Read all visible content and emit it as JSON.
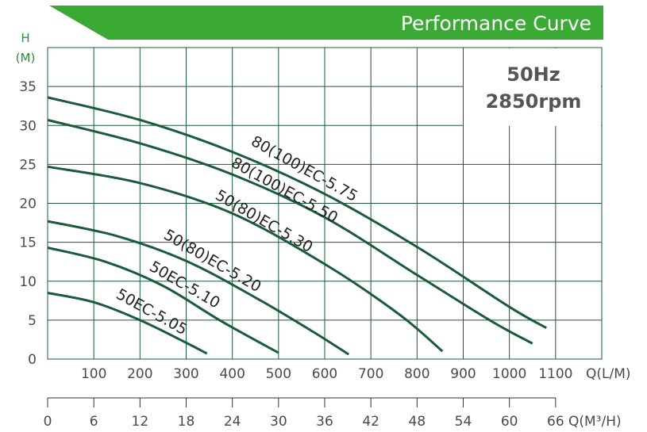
{
  "chart_data": {
    "type": "line",
    "title": "Performance Curve",
    "ylabel_lines": [
      "H",
      "(M)"
    ],
    "xlabel_lpm": "Q(L/M)",
    "xlabel_m3h": "Q(M³/H)",
    "info_lines": [
      "50Hz",
      "2850rpm"
    ],
    "xlim_lpm": [
      0,
      1200
    ],
    "ylim": [
      0,
      40
    ],
    "grid": true,
    "x_ticks_lpm": [
      100,
      200,
      300,
      400,
      500,
      600,
      700,
      800,
      900,
      1000,
      1100
    ],
    "x_ticks_m3h": [
      0,
      6,
      12,
      18,
      24,
      30,
      36,
      42,
      48,
      54,
      60,
      66
    ],
    "y_ticks": [
      0,
      5,
      10,
      15,
      20,
      25,
      30,
      35
    ],
    "curve_color": "#1a5c38",
    "accent_color": "#3aaa35",
    "series": [
      {
        "name": "80(100)EC-5.75",
        "x": [
          0,
          200,
          400,
          600,
          800,
          1000,
          1080
        ],
        "y": [
          33.6,
          30.7,
          26.6,
          21.2,
          14.4,
          6.7,
          4.0
        ]
      },
      {
        "name": "80(100)EC-5.50",
        "x": [
          0,
          200,
          400,
          600,
          800,
          960,
          1050
        ],
        "y": [
          30.7,
          27.7,
          23.7,
          18.2,
          10.8,
          4.9,
          2.0
        ]
      },
      {
        "name": "50(80)EC-5.30",
        "x": [
          0,
          200,
          400,
          600,
          760,
          855
        ],
        "y": [
          24.7,
          22.6,
          18.7,
          12.2,
          5.8,
          1.0
        ]
      },
      {
        "name": "50(80)EC-5.20",
        "x": [
          0,
          150,
          300,
          450,
          575,
          652
        ],
        "y": [
          17.7,
          15.8,
          12.6,
          7.9,
          3.5,
          0.6
        ]
      },
      {
        "name": "50EC-5.10",
        "x": [
          0,
          125,
          250,
          375,
          500
        ],
        "y": [
          14.3,
          12.5,
          9.4,
          4.9,
          0.8
        ]
      },
      {
        "name": "50EC-5.05",
        "x": [
          0,
          100,
          200,
          300,
          345
        ],
        "y": [
          8.5,
          7.3,
          5.0,
          2.1,
          0.7
        ]
      }
    ]
  }
}
